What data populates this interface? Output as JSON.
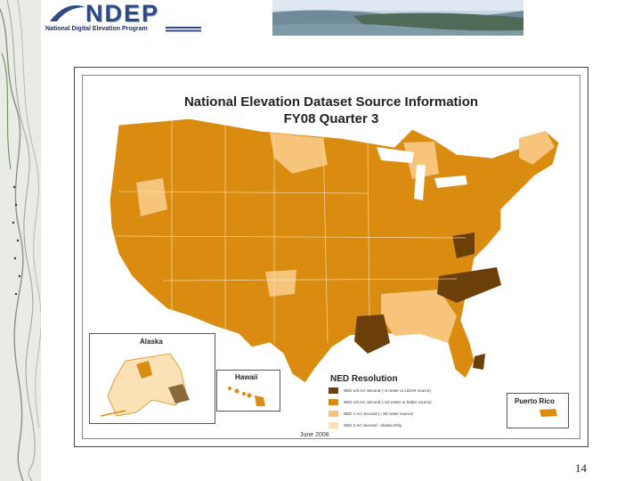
{
  "header": {
    "logo_text": "NDEP",
    "program_name": "National Digital Elevation Program"
  },
  "map": {
    "title_line1": "National Elevation Dataset Source Information",
    "title_line2": "FY08 Quarter 3",
    "date": "June 2008",
    "insets": {
      "alaska": "Alaska",
      "hawaii": "Hawaii",
      "puerto_rico": "Puerto Rico"
    },
    "legend": {
      "title": "NED Resolution",
      "items": [
        {
          "label": "NED 1/9 Arc Second (~3 meter or LIDAR source)",
          "color": "#6b3f0a"
        },
        {
          "label": "NED 1/3 Arc Second (~10 meter or better source)",
          "color": "#d98c0f"
        },
        {
          "label": "NED 1 Arc Second (~ 30 meter source)",
          "color": "#f6c47a"
        },
        {
          "label": "NED 2 Arc Second - Alaska Only",
          "color": "#fbe1b6"
        }
      ]
    }
  },
  "page_number": "14"
}
